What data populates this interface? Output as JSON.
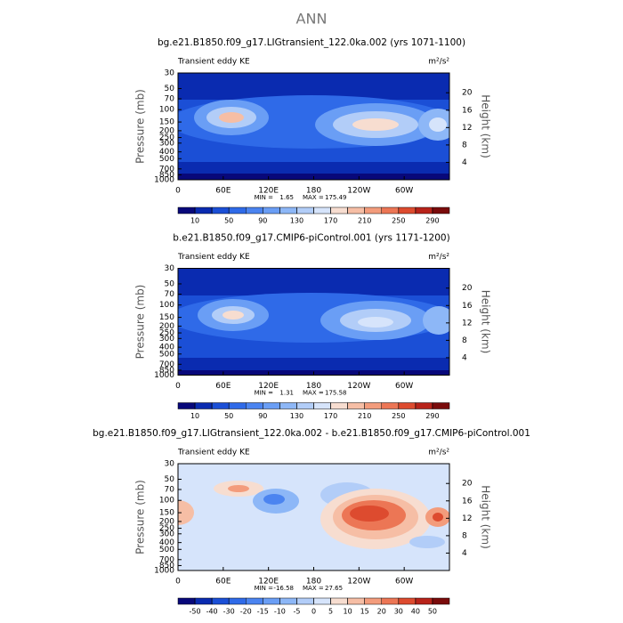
{
  "title": "ANN",
  "panels": [
    {
      "subtitle": "bg.e21.B1850.f09_g17.LIGtransient_122.0ka.002 (yrs 1071-1100)",
      "left_label": "Transient eddy KE",
      "units": "m²/s²",
      "y_label": "Pressure (mb)",
      "y2_label": "Height (km)",
      "ylim": [
        30,
        1000
      ],
      "log_y": true,
      "yticks": [
        30,
        50,
        70,
        100,
        150,
        200,
        250,
        300,
        400,
        500,
        700,
        850,
        1000
      ],
      "y2ticks": [
        4,
        8,
        12,
        16,
        20
      ],
      "xlim": [
        0,
        360
      ],
      "xticks": [
        0,
        {
          "value": 60,
          "label": "60E"
        },
        {
          "value": 120,
          "label": "120E"
        },
        180,
        {
          "value": 240,
          "label": "120W"
        },
        {
          "value": 300,
          "label": "60W"
        }
      ],
      "min_label": "MIN =",
      "min": 1.65,
      "max_label": "MAX =",
      "max": 175.49,
      "levels": [
        10,
        30,
        50,
        70,
        90,
        110,
        130,
        150,
        170,
        190,
        210,
        230,
        250,
        270,
        290
      ],
      "colorbar_ticks": [
        10,
        50,
        90,
        130,
        170,
        210,
        250,
        290
      ],
      "colors": [
        "#08087a",
        "#0a2bb0",
        "#1b4fd6",
        "#2f6ae8",
        "#4b84f0",
        "#6a9ef5",
        "#8db7f7",
        "#b2cdf8",
        "#d6e4fb",
        "#f7ddd0",
        "#f6bea5",
        "#f39c7c",
        "#ec7655",
        "#dd4b2f",
        "#b8231a",
        "#7a0b0b"
      ]
    },
    {
      "subtitle": "b.e21.B1850.f09_g17.CMIP6-piControl.001 (yrs 1171-1200)",
      "left_label": "Transient eddy KE",
      "units": "m²/s²",
      "y_label": "Pressure (mb)",
      "y2_label": "Height (km)",
      "ylim": [
        30,
        1000
      ],
      "log_y": true,
      "yticks": [
        30,
        50,
        70,
        100,
        150,
        200,
        250,
        300,
        400,
        500,
        700,
        850,
        1000
      ],
      "y2ticks": [
        4,
        8,
        12,
        16,
        20
      ],
      "xlim": [
        0,
        360
      ],
      "xticks": [
        0,
        {
          "value": 60,
          "label": "60E"
        },
        {
          "value": 120,
          "label": "120E"
        },
        180,
        {
          "value": 240,
          "label": "120W"
        },
        {
          "value": 300,
          "label": "60W"
        }
      ],
      "min_label": "MIN =",
      "min": 1.31,
      "max_label": "MAX =",
      "max": 175.58,
      "levels": [
        10,
        30,
        50,
        70,
        90,
        110,
        130,
        150,
        170,
        190,
        210,
        230,
        250,
        270,
        290
      ],
      "colorbar_ticks": [
        10,
        50,
        90,
        130,
        170,
        210,
        250,
        290
      ],
      "colors": [
        "#08087a",
        "#0a2bb0",
        "#1b4fd6",
        "#2f6ae8",
        "#4b84f0",
        "#6a9ef5",
        "#8db7f7",
        "#b2cdf8",
        "#d6e4fb",
        "#f7ddd0",
        "#f6bea5",
        "#f39c7c",
        "#ec7655",
        "#dd4b2f",
        "#b8231a",
        "#7a0b0b"
      ]
    },
    {
      "subtitle": "bg.e21.B1850.f09_g17.LIGtransient_122.0ka.002 - b.e21.B1850.f09_g17.CMIP6-piControl.001",
      "left_label": "Transient eddy KE",
      "units": "m²/s²",
      "y_label": "Pressure (mb)",
      "y2_label": "Height (km)",
      "ylim": [
        30,
        1000
      ],
      "log_y": true,
      "yticks": [
        30,
        50,
        70,
        100,
        150,
        200,
        250,
        300,
        400,
        500,
        700,
        850,
        1000
      ],
      "y2ticks": [
        4,
        8,
        12,
        16,
        20
      ],
      "xlim": [
        0,
        360
      ],
      "xticks": [
        0,
        {
          "value": 60,
          "label": "60E"
        },
        {
          "value": 120,
          "label": "120E"
        },
        180,
        {
          "value": 240,
          "label": "120W"
        },
        {
          "value": 300,
          "label": "60W"
        }
      ],
      "min_label": "MIN =",
      "min": -16.58,
      "max_label": "MAX =",
      "max": 27.65,
      "levels": [
        -50,
        -40,
        -30,
        -20,
        -15,
        -10,
        -5,
        0,
        5,
        10,
        15,
        20,
        30,
        40,
        50
      ],
      "colorbar_ticks": [
        -50,
        -40,
        -30,
        -20,
        -15,
        -10,
        -5,
        0,
        5,
        10,
        15,
        20,
        30,
        40,
        50
      ],
      "colors": [
        "#08087a",
        "#0a2bb0",
        "#1b4fd6",
        "#2f6ae8",
        "#4b84f0",
        "#6a9ef5",
        "#8db7f7",
        "#b2cdf8",
        "#d6e4fb",
        "#f7ddd0",
        "#f6bea5",
        "#f39c7c",
        "#ec7655",
        "#dd4b2f",
        "#b8231a",
        "#7a0b0b"
      ]
    }
  ]
}
